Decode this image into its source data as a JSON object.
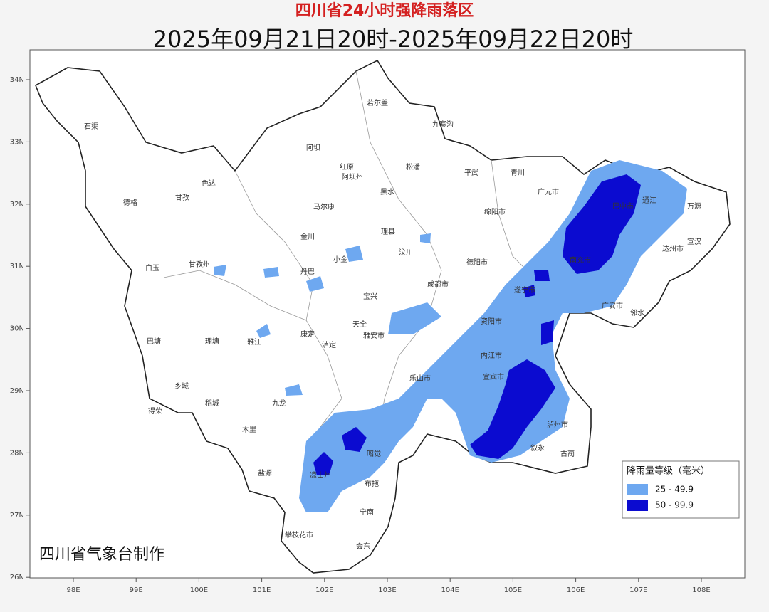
{
  "header": {
    "title": "四川省24小时强降雨落区",
    "subtitle": "2025年09月21日20时-2025年09月22日20时"
  },
  "map": {
    "xticks": [
      {
        "value": 98,
        "label": "98E"
      },
      {
        "value": 99,
        "label": "99E"
      },
      {
        "value": 100,
        "label": "100E"
      },
      {
        "value": 101,
        "label": "101E"
      },
      {
        "value": 102,
        "label": "102E"
      },
      {
        "value": 103,
        "label": "103E"
      },
      {
        "value": 104,
        "label": "104E"
      },
      {
        "value": 105,
        "label": "105E"
      },
      {
        "value": 106,
        "label": "106E"
      },
      {
        "value": 107,
        "label": "107E"
      },
      {
        "value": 108,
        "label": "108E"
      }
    ],
    "yticks": [
      {
        "value": 34,
        "label": "34N"
      },
      {
        "value": 33,
        "label": "33N"
      },
      {
        "value": 32,
        "label": "32N"
      },
      {
        "value": 31,
        "label": "31N"
      },
      {
        "value": 30,
        "label": "30N"
      },
      {
        "value": 29,
        "label": "29N"
      },
      {
        "value": 28,
        "label": "28N"
      },
      {
        "value": 27,
        "label": "27N"
      },
      {
        "value": 26,
        "label": "26N"
      }
    ],
    "places": [
      "石渠",
      "德格",
      "甘孜",
      "色达",
      "白玉",
      "甘孜州",
      "巴塘",
      "理塘",
      "乡城",
      "稻城",
      "得荣",
      "阿坝",
      "阿坝州",
      "若尔盖",
      "九寨沟",
      "红原",
      "松潘",
      "马尔康",
      "黑水",
      "金川",
      "理县",
      "汶川",
      "小金",
      "丹巴",
      "康定",
      "泸定",
      "雅江",
      "九龙",
      "木里",
      "雅安市",
      "宝兴",
      "天全",
      "成都市",
      "德阳市",
      "绵阳市",
      "广元市",
      "平武",
      "青川",
      "巴中市",
      "南充市",
      "达州市",
      "遂宁市",
      "资阳市",
      "内江市",
      "宜宾市",
      "乐山市",
      "泸州市",
      "凉山州",
      "攀枝花市",
      "会东",
      "宁南",
      "布拖",
      "昭觉",
      "盐源",
      "广安市",
      "邻水",
      "古蔺",
      "叙永",
      "宣汉",
      "万源",
      "通江"
    ],
    "credit": "四川省气象台制作"
  },
  "legend": {
    "title": "降雨量等级（毫米）",
    "items": [
      {
        "label": "25 - 49.9",
        "color": "#6ea8f0"
      },
      {
        "label": "50 - 99.9",
        "color": "#0b0bd0"
      }
    ]
  }
}
